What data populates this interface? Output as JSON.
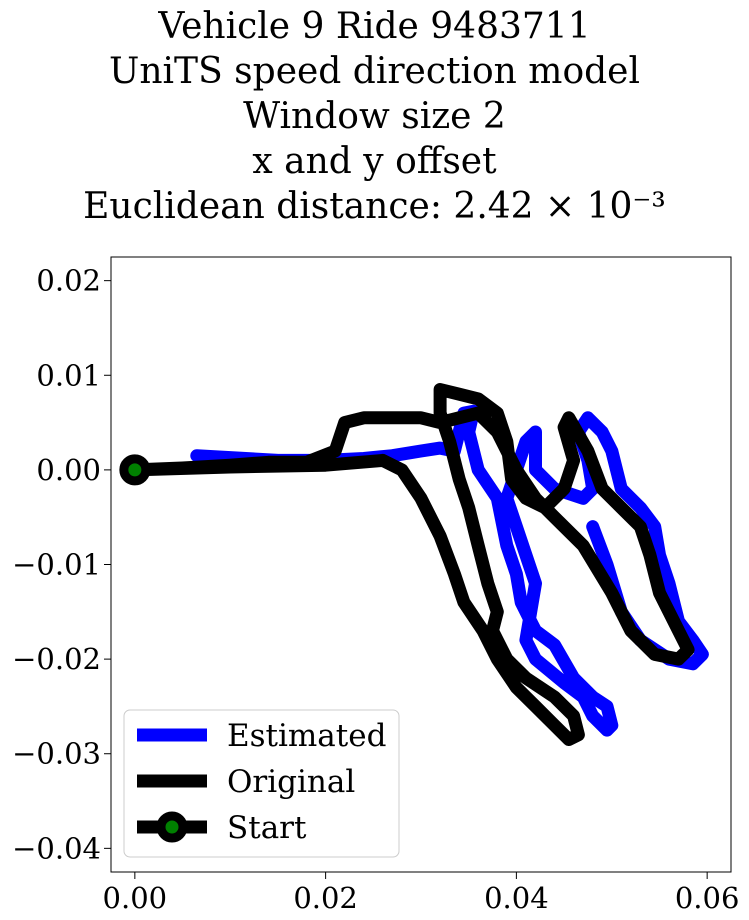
{
  "title_lines": [
    "Vehicle 9 Ride 9483711",
    "UniTS speed direction model",
    "Window size 2",
    "x and y offset",
    "Euclidean distance: 2.42 × 10⁻³"
  ],
  "chart_data": {
    "type": "line",
    "title": "Vehicle 9 Ride 9483711 / UniTS speed direction model / Window size 2 / x and y offset / Euclidean distance: 2.42 × 10⁻³",
    "xlabel": "",
    "ylabel": "",
    "xlim": [
      -0.0025,
      0.0625
    ],
    "ylim": [
      -0.0425,
      0.0225
    ],
    "x_ticks": [
      0.0,
      0.02,
      0.04,
      0.06
    ],
    "x_tick_labels": [
      "0.00",
      "0.02",
      "0.04",
      "0.06"
    ],
    "y_ticks": [
      0.02,
      0.01,
      0.0,
      -0.01,
      -0.02,
      -0.03,
      -0.04
    ],
    "y_tick_labels": [
      "0.02",
      "0.01",
      "0.00",
      "−0.01",
      "−0.02",
      "−0.03",
      "−0.04"
    ],
    "grid": false,
    "legend_placement": "lower-left",
    "series": [
      {
        "name": "Estimated",
        "color": "#0000ff",
        "points": [
          [
            0.0065,
            0.0015
          ],
          [
            0.01,
            0.0013
          ],
          [
            0.015,
            0.001
          ],
          [
            0.02,
            0.001
          ],
          [
            0.024,
            0.0012
          ],
          [
            0.027,
            0.0015
          ],
          [
            0.03,
            0.002
          ],
          [
            0.032,
            0.0023
          ],
          [
            0.0335,
            0.002
          ],
          [
            0.0345,
            0.006
          ],
          [
            0.0355,
            0.0062
          ],
          [
            0.035,
            0.004
          ],
          [
            0.036,
            0.0
          ],
          [
            0.038,
            -0.003
          ],
          [
            0.039,
            -0.008
          ],
          [
            0.04,
            -0.011
          ],
          [
            0.0405,
            -0.014
          ],
          [
            0.0415,
            -0.016
          ],
          [
            0.042,
            -0.017
          ],
          [
            0.044,
            -0.0185
          ],
          [
            0.046,
            -0.022
          ],
          [
            0.048,
            -0.024
          ],
          [
            0.0495,
            -0.025
          ],
          [
            0.05,
            -0.027
          ],
          [
            0.0495,
            -0.0275
          ],
          [
            0.048,
            -0.026
          ],
          [
            0.047,
            -0.024
          ],
          [
            0.045,
            -0.0225
          ],
          [
            0.042,
            -0.02
          ],
          [
            0.041,
            -0.018
          ],
          [
            0.0415,
            -0.015
          ],
          [
            0.042,
            -0.012
          ],
          [
            0.041,
            -0.009
          ],
          [
            0.04,
            -0.006
          ],
          [
            0.039,
            -0.003
          ],
          [
            0.04,
            0.0
          ],
          [
            0.041,
            0.003
          ],
          [
            0.042,
            0.004
          ],
          [
            0.042,
            0.0
          ],
          [
            0.044,
            -0.002
          ],
          [
            0.047,
            -0.003
          ],
          [
            0.048,
            -0.002
          ],
          [
            0.0475,
            0.001
          ],
          [
            0.0465,
            0.004
          ],
          [
            0.0475,
            0.0055
          ],
          [
            0.049,
            0.004
          ],
          [
            0.05,
            0.002
          ],
          [
            0.051,
            -0.002
          ],
          [
            0.053,
            -0.004
          ],
          [
            0.0545,
            -0.006
          ],
          [
            0.055,
            -0.009
          ],
          [
            0.056,
            -0.012
          ],
          [
            0.057,
            -0.016
          ],
          [
            0.0585,
            -0.018
          ],
          [
            0.0595,
            -0.0195
          ],
          [
            0.0585,
            -0.0205
          ],
          [
            0.056,
            -0.02
          ],
          [
            0.053,
            -0.018
          ],
          [
            0.051,
            -0.015
          ],
          [
            0.0495,
            -0.01
          ],
          [
            0.048,
            -0.006
          ]
        ]
      },
      {
        "name": "Original",
        "color": "#000000",
        "points": [
          [
            0.0,
            0.0
          ],
          [
            0.01,
            0.0003
          ],
          [
            0.02,
            0.0005
          ],
          [
            0.026,
            0.001
          ],
          [
            0.028,
            0.0
          ],
          [
            0.03,
            -0.003
          ],
          [
            0.032,
            -0.007
          ],
          [
            0.0335,
            -0.011
          ],
          [
            0.0345,
            -0.014
          ],
          [
            0.0365,
            -0.017
          ],
          [
            0.038,
            -0.02
          ],
          [
            0.04,
            -0.023
          ],
          [
            0.042,
            -0.025
          ],
          [
            0.044,
            -0.027
          ],
          [
            0.0455,
            -0.0285
          ],
          [
            0.0465,
            -0.028
          ],
          [
            0.046,
            -0.026
          ],
          [
            0.044,
            -0.024
          ],
          [
            0.041,
            -0.022
          ],
          [
            0.039,
            -0.02
          ],
          [
            0.0375,
            -0.017
          ],
          [
            0.038,
            -0.015
          ],
          [
            0.037,
            -0.012
          ],
          [
            0.036,
            -0.008
          ],
          [
            0.035,
            -0.004
          ],
          [
            0.034,
            -0.001
          ],
          [
            0.033,
            0.003
          ],
          [
            0.032,
            0.006
          ],
          [
            0.032,
            0.0085
          ],
          [
            0.034,
            0.008
          ],
          [
            0.036,
            0.0075
          ],
          [
            0.038,
            0.006
          ],
          [
            0.039,
            0.003
          ],
          [
            0.0395,
            -0.001
          ],
          [
            0.041,
            -0.003
          ],
          [
            0.043,
            -0.004
          ],
          [
            0.045,
            -0.002
          ],
          [
            0.046,
            0.001
          ],
          [
            0.045,
            0.0045
          ],
          [
            0.0455,
            0.0055
          ],
          [
            0.0475,
            0.002
          ],
          [
            0.049,
            -0.002
          ],
          [
            0.051,
            -0.004
          ],
          [
            0.053,
            -0.006
          ],
          [
            0.054,
            -0.009
          ],
          [
            0.055,
            -0.013
          ],
          [
            0.057,
            -0.017
          ],
          [
            0.058,
            -0.019
          ],
          [
            0.057,
            -0.02
          ],
          [
            0.0545,
            -0.0195
          ],
          [
            0.052,
            -0.017
          ],
          [
            0.05,
            -0.013
          ],
          [
            0.047,
            -0.008
          ],
          [
            0.044,
            -0.005
          ],
          [
            0.042,
            -0.003
          ],
          [
            0.04,
            0.0
          ],
          [
            0.038,
            0.004
          ],
          [
            0.036,
            0.006
          ],
          [
            0.032,
            0.005
          ],
          [
            0.03,
            0.0055
          ],
          [
            0.024,
            0.0055
          ],
          [
            0.022,
            0.005
          ],
          [
            0.021,
            0.002
          ],
          [
            0.018,
            0.0008
          ],
          [
            0.014,
            0.0008
          ],
          [
            0.01,
            0.0005
          ],
          [
            0.005,
            0.0002
          ],
          [
            0.0,
            0.0
          ]
        ]
      }
    ],
    "start_point": {
      "name": "Start",
      "x": 0.0,
      "y": 0.0,
      "marker_edge": "#000000",
      "marker_face": "#008000"
    }
  },
  "legend": {
    "items": [
      {
        "label": "Estimated",
        "color": "#0000ff",
        "marker": false
      },
      {
        "label": "Original",
        "color": "#000000",
        "marker": false
      },
      {
        "label": "Start",
        "color": "#000000",
        "marker": true
      }
    ]
  }
}
